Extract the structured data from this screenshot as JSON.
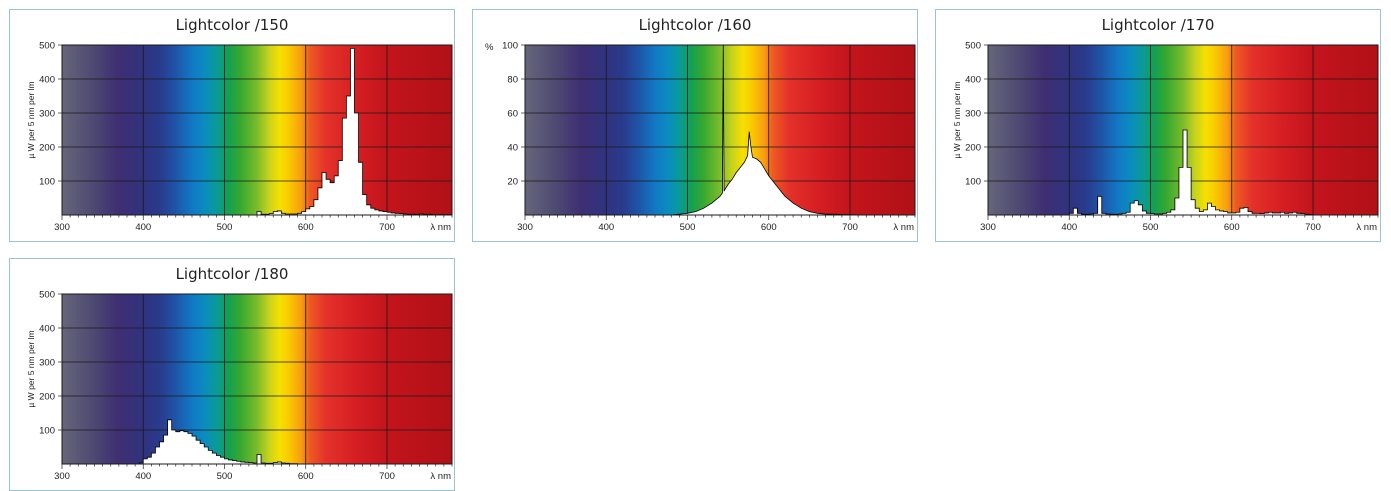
{
  "chart_data": [
    {
      "type": "area",
      "title": "Lightcolor /150",
      "ylabel": "µ W per 5 nm per lm",
      "xlabel": "λ nm",
      "xlim": [
        300,
        780
      ],
      "ylim": [
        0,
        500
      ],
      "xticks": [
        300,
        400,
        500,
        600,
        700
      ],
      "yticks": [
        100,
        200,
        300,
        400,
        500
      ],
      "grid": true,
      "series": [
        {
          "x": [
            520,
            525,
            530,
            535,
            540,
            545,
            550,
            555,
            560,
            565,
            570,
            575,
            580,
            585,
            590,
            595,
            600,
            605,
            610,
            615,
            620,
            625,
            630,
            635,
            640,
            645,
            650,
            655,
            660,
            665,
            670,
            675,
            680,
            685,
            690,
            695,
            700,
            705,
            710,
            715,
            720,
            725,
            730,
            735,
            740,
            745,
            750,
            755,
            760,
            765,
            770,
            775,
            780
          ],
          "values": [
            0,
            0,
            0,
            0,
            10,
            2,
            2,
            4,
            10,
            12,
            5,
            3,
            3,
            3,
            5,
            10,
            18,
            25,
            45,
            80,
            125,
            105,
            95,
            115,
            160,
            285,
            350,
            490,
            300,
            155,
            60,
            30,
            20,
            15,
            12,
            10,
            8,
            6,
            5,
            4,
            3,
            2,
            2,
            2,
            3,
            2,
            2,
            1,
            1,
            1,
            1,
            1,
            0
          ]
        }
      ]
    },
    {
      "type": "area",
      "title": "Lightcolor /160",
      "ylabel": "%",
      "xlabel": "λ nm",
      "xlim": [
        300,
        780
      ],
      "ylim": [
        0,
        100
      ],
      "xticks": [
        300,
        400,
        500,
        600,
        700
      ],
      "yticks": [
        20,
        40,
        60,
        80,
        100
      ],
      "grid": true,
      "series": [
        {
          "x": [
            480,
            490,
            500,
            510,
            520,
            530,
            540,
            543,
            544,
            545,
            546,
            550,
            555,
            560,
            565,
            570,
            574,
            576,
            578,
            580,
            585,
            590,
            595,
            600,
            610,
            620,
            630,
            640,
            650,
            660,
            670,
            680,
            690,
            700,
            720,
            740,
            760,
            780
          ],
          "values": [
            0,
            0.5,
            1,
            2,
            4,
            7,
            11,
            13,
            100,
            14,
            15,
            18,
            21,
            25,
            28,
            31,
            35,
            49,
            40,
            34,
            33,
            31,
            27,
            23,
            17,
            11,
            7,
            4,
            2,
            1,
            0.5,
            0.5,
            0.3,
            0.2,
            0,
            0,
            0,
            0
          ]
        }
      ]
    },
    {
      "type": "area",
      "title": "Lightcolor /170",
      "ylabel": "µ W per 5 nm per lm",
      "xlabel": "λ nm",
      "xlim": [
        300,
        780
      ],
      "ylim": [
        0,
        500
      ],
      "xticks": [
        300,
        400,
        500,
        600,
        700
      ],
      "yticks": [
        100,
        200,
        300,
        400,
        500
      ],
      "grid": true,
      "series": [
        {
          "x": [
            395,
            400,
            405,
            410,
            415,
            420,
            425,
            430,
            435,
            440,
            445,
            450,
            455,
            460,
            465,
            470,
            475,
            480,
            485,
            490,
            495,
            500,
            505,
            510,
            515,
            520,
            525,
            530,
            535,
            540,
            545,
            550,
            555,
            560,
            565,
            570,
            575,
            580,
            585,
            590,
            595,
            600,
            605,
            610,
            615,
            620,
            625,
            630,
            635,
            640,
            645,
            650,
            655,
            660,
            665,
            670,
            675,
            680,
            685,
            690,
            695,
            700
          ],
          "values": [
            0,
            5,
            20,
            5,
            2,
            2,
            3,
            5,
            55,
            5,
            3,
            2,
            2,
            3,
            5,
            8,
            35,
            42,
            30,
            12,
            5,
            4,
            3,
            3,
            5,
            8,
            15,
            50,
            140,
            250,
            140,
            45,
            20,
            10,
            15,
            35,
            25,
            15,
            12,
            10,
            6,
            6,
            8,
            20,
            22,
            10,
            5,
            5,
            4,
            6,
            8,
            6,
            6,
            8,
            5,
            6,
            8,
            5,
            4,
            2,
            1,
            0
          ]
        }
      ]
    },
    {
      "type": "area",
      "title": "Lightcolor /180",
      "ylabel": "µ W per 5 nm per lm",
      "xlabel": "λ nm",
      "xlim": [
        300,
        780
      ],
      "ylim": [
        0,
        500
      ],
      "xticks": [
        300,
        400,
        500,
        600,
        700
      ],
      "yticks": [
        100,
        200,
        300,
        400,
        500
      ],
      "grid": true,
      "series": [
        {
          "x": [
            390,
            395,
            400,
            405,
            410,
            415,
            420,
            425,
            430,
            435,
            440,
            445,
            450,
            455,
            460,
            465,
            470,
            475,
            480,
            485,
            490,
            495,
            500,
            505,
            510,
            515,
            520,
            525,
            530,
            535,
            540,
            545,
            550,
            555,
            560,
            565,
            570,
            575,
            580,
            585,
            590
          ],
          "values": [
            0,
            3,
            15,
            20,
            32,
            50,
            65,
            85,
            130,
            100,
            95,
            98,
            95,
            90,
            82,
            70,
            60,
            50,
            40,
            32,
            25,
            20,
            15,
            12,
            10,
            8,
            6,
            5,
            4,
            3,
            28,
            3,
            2,
            2,
            4,
            6,
            3,
            2,
            1,
            1,
            0
          ]
        }
      ]
    }
  ]
}
